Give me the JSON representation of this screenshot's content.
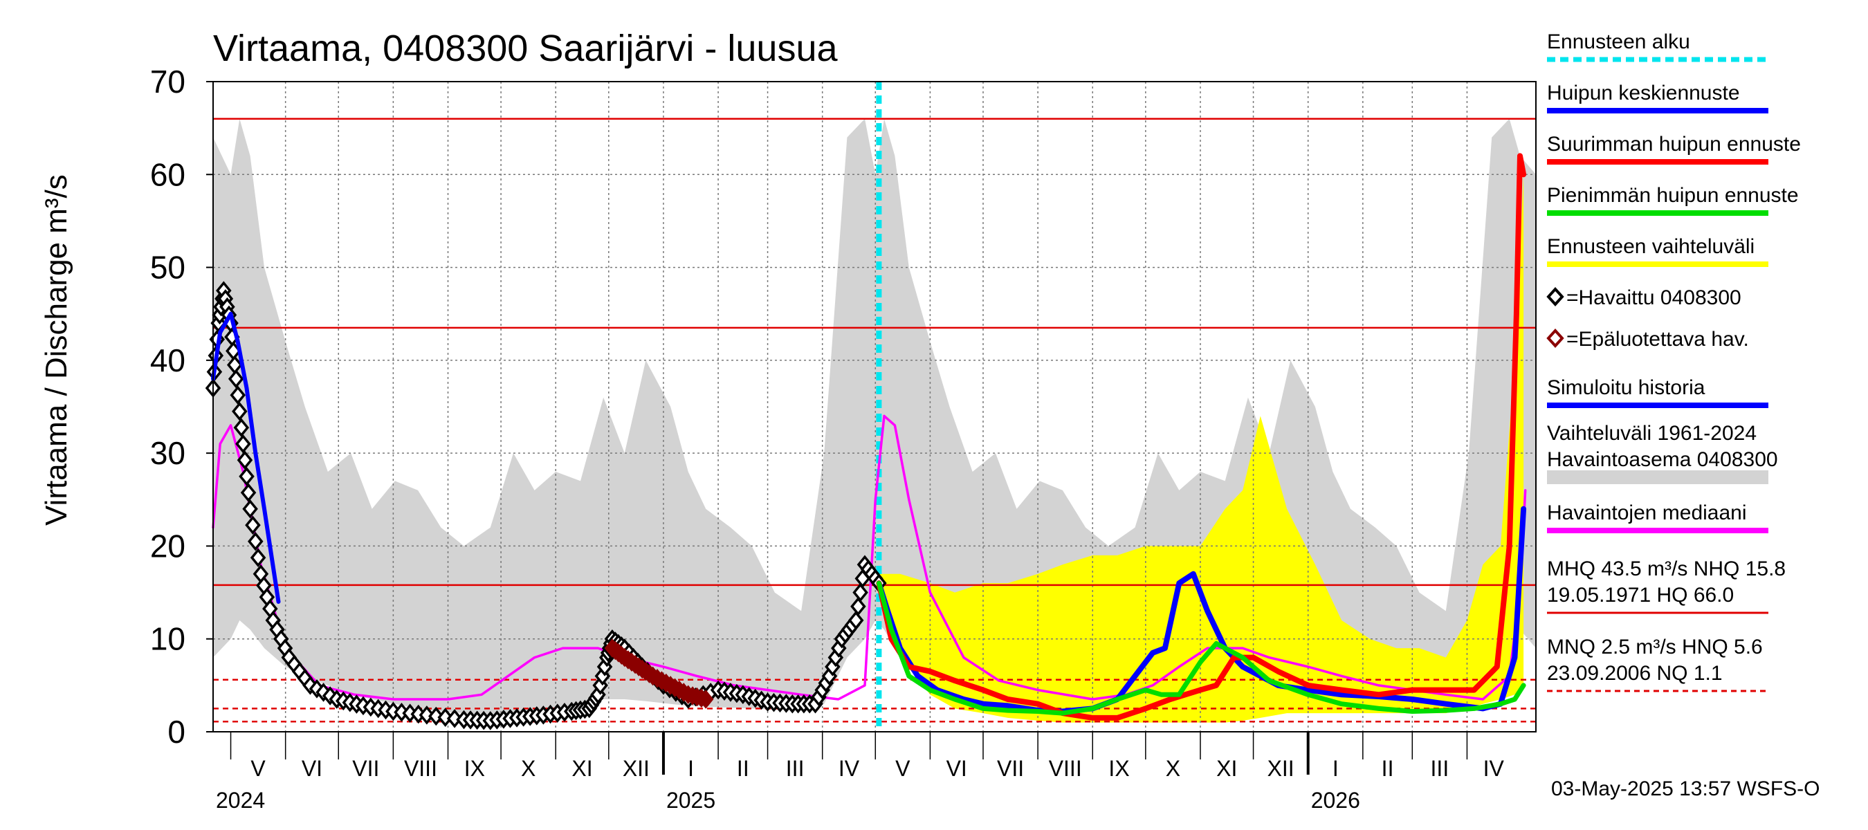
{
  "chart_data": {
    "type": "line",
    "title": "Virtaama, 0408300 Saarijärvi - luusua",
    "ylabel": "Virtaama / Discharge   m³/s",
    "ylim": [
      0,
      70
    ],
    "yticks": [
      0,
      10,
      20,
      30,
      40,
      50,
      60,
      70
    ],
    "xrange": [
      "2024-04-21",
      "2026-05-10"
    ],
    "months": [
      {
        "label": "V",
        "start": "2024-05-01",
        "end": "2024-06-01"
      },
      {
        "label": "VI",
        "start": "2024-06-01",
        "end": "2024-07-01"
      },
      {
        "label": "VII",
        "start": "2024-07-01",
        "end": "2024-08-01"
      },
      {
        "label": "VIII",
        "start": "2024-08-01",
        "end": "2024-09-01"
      },
      {
        "label": "IX",
        "start": "2024-09-01",
        "end": "2024-10-01"
      },
      {
        "label": "X",
        "start": "2024-10-01",
        "end": "2024-11-01"
      },
      {
        "label": "XI",
        "start": "2024-11-01",
        "end": "2024-12-01"
      },
      {
        "label": "XII",
        "start": "2024-12-01",
        "end": "2025-01-01"
      },
      {
        "label": "I",
        "start": "2025-01-01",
        "end": "2025-02-01"
      },
      {
        "label": "II",
        "start": "2025-02-01",
        "end": "2025-03-01"
      },
      {
        "label": "III",
        "start": "2025-03-01",
        "end": "2025-04-01"
      },
      {
        "label": "IV",
        "start": "2025-04-01",
        "end": "2025-05-01"
      },
      {
        "label": "V",
        "start": "2025-05-01",
        "end": "2025-06-01"
      },
      {
        "label": "VI",
        "start": "2025-06-01",
        "end": "2025-07-01"
      },
      {
        "label": "VII",
        "start": "2025-07-01",
        "end": "2025-08-01"
      },
      {
        "label": "VIII",
        "start": "2025-08-01",
        "end": "2025-09-01"
      },
      {
        "label": "IX",
        "start": "2025-09-01",
        "end": "2025-10-01"
      },
      {
        "label": "X",
        "start": "2025-10-01",
        "end": "2025-11-01"
      },
      {
        "label": "XI",
        "start": "2025-11-01",
        "end": "2025-12-01"
      },
      {
        "label": "XII",
        "start": "2025-12-01",
        "end": "2026-01-01"
      },
      {
        "label": "I",
        "start": "2026-01-01",
        "end": "2026-02-01"
      },
      {
        "label": "II",
        "start": "2026-02-01",
        "end": "2026-03-01"
      },
      {
        "label": "III",
        "start": "2026-03-01",
        "end": "2026-04-01"
      },
      {
        "label": "IV",
        "start": "2026-04-01",
        "end": "2026-05-01"
      }
    ],
    "years": [
      {
        "label": "2024",
        "date": "2024-04-21"
      },
      {
        "label": "2025",
        "date": "2025-01-01"
      },
      {
        "label": "2026",
        "date": "2026-01-01"
      }
    ],
    "reference_lines": [
      {
        "name": "HQ",
        "value": 66.0,
        "color": "#e00000",
        "style": "solid"
      },
      {
        "name": "MHQ",
        "value": 43.5,
        "color": "#e00000",
        "style": "solid"
      },
      {
        "name": "NHQ",
        "value": 15.8,
        "color": "#e00000",
        "style": "solid"
      },
      {
        "name": "HNQ",
        "value": 5.6,
        "color": "#e00000",
        "style": "dashed"
      },
      {
        "name": "MNQ",
        "value": 2.5,
        "color": "#e00000",
        "style": "dashed"
      },
      {
        "name": "NQ",
        "value": 1.1,
        "color": "#e00000",
        "style": "dashed"
      }
    ],
    "forecast_start": "2025-05-03",
    "historical_range": {
      "color": "#d3d3d3",
      "dates": [
        "2024-04-21",
        "2024-05-01",
        "2024-05-06",
        "2024-05-12",
        "2024-05-20",
        "2024-06-01",
        "2024-06-12",
        "2024-06-25",
        "2024-07-08",
        "2024-07-20",
        "2024-08-02",
        "2024-08-15",
        "2024-08-28",
        "2024-09-10",
        "2024-09-25",
        "2024-10-08",
        "2024-10-20",
        "2024-11-01",
        "2024-11-15",
        "2024-11-28",
        "2024-12-10",
        "2024-12-22",
        "2025-01-05",
        "2025-01-15",
        "2025-01-25",
        "2025-02-08",
        "2025-02-20",
        "2025-03-05",
        "2025-03-20",
        "2025-04-02",
        "2025-04-15",
        "2025-04-25",
        "2025-05-01",
        "2025-05-06",
        "2025-05-12",
        "2025-05-20",
        "2025-06-01",
        "2025-06-12",
        "2025-06-25",
        "2025-07-08",
        "2025-07-20",
        "2025-08-02",
        "2025-08-15",
        "2025-08-28",
        "2025-09-10",
        "2025-09-25",
        "2025-10-08",
        "2025-10-20",
        "2025-11-01",
        "2025-11-15",
        "2025-11-28",
        "2025-12-10",
        "2025-12-22",
        "2026-01-05",
        "2026-01-15",
        "2026-01-25",
        "2026-02-08",
        "2026-02-20",
        "2026-03-05",
        "2026-03-20",
        "2026-04-02",
        "2026-04-15",
        "2026-04-25",
        "2026-05-01",
        "2026-05-10"
      ],
      "upper": [
        64,
        60,
        66,
        62,
        50,
        42,
        35,
        28,
        30,
        24,
        27,
        26,
        22,
        20,
        22,
        30,
        26,
        28,
        27,
        36,
        30,
        40,
        35,
        28,
        24,
        22,
        20,
        15,
        13,
        30,
        64,
        66,
        60,
        66,
        62,
        50,
        42,
        35,
        28,
        30,
        24,
        27,
        26,
        22,
        20,
        22,
        30,
        26,
        28,
        27,
        36,
        30,
        40,
        35,
        28,
        24,
        22,
        20,
        15,
        13,
        30,
        64,
        66,
        62,
        60
      ],
      "lower": [
        8,
        10,
        12,
        11,
        9,
        7,
        6,
        5,
        4,
        3.5,
        3,
        2.5,
        2.2,
        2,
        1.8,
        2,
        2.2,
        2.5,
        3,
        3.5,
        3.5,
        3.3,
        3,
        2.8,
        2.7,
        2.6,
        2.5,
        2.4,
        2.4,
        3,
        8,
        10,
        12,
        11,
        9,
        7,
        6,
        5,
        4,
        3.5,
        3,
        2.5,
        2.2,
        2,
        1.8,
        2,
        2.2,
        2.5,
        3,
        3.5,
        3.5,
        3.3,
        3,
        2.8,
        2.7,
        2.6,
        2.5,
        2.4,
        2.4,
        3,
        8,
        10,
        12,
        11,
        9
      ]
    },
    "forecast_range": {
      "color": "#ffff00",
      "dates": [
        "2025-05-03",
        "2025-05-15",
        "2025-06-01",
        "2025-06-15",
        "2025-07-01",
        "2025-07-15",
        "2025-08-01",
        "2025-08-15",
        "2025-09-01",
        "2025-09-15",
        "2025-10-01",
        "2025-10-15",
        "2025-11-01",
        "2025-11-15",
        "2025-11-25",
        "2025-12-05",
        "2025-12-20",
        "2026-01-05",
        "2026-01-20",
        "2026-02-05",
        "2026-02-20",
        "2026-03-05",
        "2026-03-20",
        "2026-04-01",
        "2026-04-10",
        "2026-04-20",
        "2026-04-28",
        "2026-05-03"
      ],
      "upper": [
        17,
        17,
        16,
        15,
        16,
        16,
        17,
        18,
        19,
        19,
        20,
        20,
        20,
        24,
        26,
        34,
        24,
        18,
        12,
        10,
        9,
        9,
        8,
        12,
        18,
        20,
        40,
        60
      ],
      "lower": [
        16,
        8,
        4,
        2.5,
        2,
        1.5,
        1.2,
        1,
        1,
        1,
        1,
        1,
        1,
        1,
        1.2,
        1.5,
        2,
        2,
        2,
        2,
        2,
        2,
        2,
        2.5,
        3,
        3.5,
        4,
        5
      ]
    },
    "series": [
      {
        "name": "Havaintojen mediaani",
        "color": "#ff00ff",
        "x": [
          "2024-04-21",
          "2024-04-25",
          "2024-05-01",
          "2024-05-08",
          "2024-05-18",
          "2024-06-01",
          "2024-06-20",
          "2024-07-10",
          "2024-08-01",
          "2024-09-01",
          "2024-09-20",
          "2024-10-05",
          "2024-10-20",
          "2024-11-05",
          "2024-11-25",
          "2024-12-10",
          "2025-01-01",
          "2025-01-20",
          "2025-02-10",
          "2025-03-01",
          "2025-03-20",
          "2025-04-10",
          "2025-04-25",
          "2025-05-01",
          "2025-05-06",
          "2025-05-12",
          "2025-05-20",
          "2025-06-01",
          "2025-06-20",
          "2025-07-10",
          "2025-08-01",
          "2025-09-01",
          "2025-09-20",
          "2025-10-05",
          "2025-10-20",
          "2025-11-05",
          "2025-11-25",
          "2025-12-10",
          "2026-01-01",
          "2026-01-20",
          "2026-02-10",
          "2026-03-01",
          "2026-03-20",
          "2026-04-10",
          "2026-04-25",
          "2026-05-01",
          "2026-05-04"
        ],
        "y": [
          22,
          31,
          33,
          28,
          18,
          9,
          5,
          4,
          3.5,
          3.5,
          4,
          6,
          8,
          9,
          9,
          8,
          7,
          6,
          5,
          4.5,
          4,
          3.5,
          5,
          25,
          34,
          33,
          25,
          15,
          8,
          5.5,
          4.5,
          3.5,
          4,
          5,
          7,
          9,
          9,
          8,
          7,
          6,
          5,
          4.5,
          4,
          3.5,
          6,
          15,
          26
        ]
      },
      {
        "name": "Havaittu 0408300",
        "color": "#000000",
        "x": [
          "2024-04-21",
          "2024-04-24",
          "2024-04-27",
          "2024-05-01",
          "2024-05-04",
          "2024-05-08",
          "2024-05-12",
          "2024-05-18",
          "2024-05-25",
          "2024-06-03",
          "2024-06-15",
          "2024-06-30",
          "2024-07-15",
          "2024-08-01",
          "2024-08-20",
          "2024-09-10",
          "2024-09-25",
          "2024-10-10",
          "2024-10-25",
          "2024-11-10",
          "2024-11-20",
          "2024-11-25",
          "2024-11-30",
          "2024-12-03",
          "2024-12-10",
          "2024-12-20",
          "2025-01-01",
          "2025-01-15",
          "2025-02-01",
          "2025-02-15",
          "2025-03-01",
          "2025-03-15",
          "2025-03-28",
          "2025-04-05",
          "2025-04-12",
          "2025-04-20",
          "2025-04-25",
          "2025-05-03"
        ],
        "y": [
          37,
          44,
          47.5,
          44,
          38,
          31,
          24,
          17,
          12,
          8,
          5,
          3.5,
          2.8,
          2.2,
          1.8,
          1.3,
          1.2,
          1.5,
          1.8,
          2.2,
          2.5,
          4,
          8,
          10,
          9,
          7,
          5,
          3.5,
          4.5,
          4,
          3.2,
          3,
          3,
          6,
          10,
          12,
          18,
          16
        ]
      },
      {
        "name": "Epäluotettava hav.",
        "color": "#8b0000",
        "x": [
          "2024-12-03",
          "2024-12-10",
          "2024-12-18",
          "2024-12-26",
          "2025-01-05",
          "2025-01-15",
          "2025-01-25"
        ],
        "y": [
          9,
          8,
          7,
          6,
          5,
          4,
          3.5
        ]
      },
      {
        "name": "Simuloitu historia",
        "color": "#0000ff",
        "x": [
          "2024-04-21",
          "2024-04-25",
          "2024-05-01",
          "2024-05-05",
          "2024-05-10",
          "2024-05-15",
          "2024-05-20",
          "2024-05-28"
        ],
        "y": [
          38,
          43,
          45,
          42,
          37,
          30,
          24,
          14
        ]
      },
      {
        "name": "Huipun keskiennuste",
        "color": "#0000ff",
        "x": [
          "2025-05-03",
          "2025-05-08",
          "2025-05-15",
          "2025-05-25",
          "2025-06-05",
          "2025-06-20",
          "2025-07-01",
          "2025-07-15",
          "2025-08-01",
          "2025-08-15",
          "2025-09-01",
          "2025-09-15",
          "2025-09-25",
          "2025-10-05",
          "2025-10-12",
          "2025-10-20",
          "2025-10-28",
          "2025-11-05",
          "2025-11-15",
          "2025-11-25",
          "2025-12-05",
          "2025-12-15",
          "2026-01-01",
          "2026-01-20",
          "2026-02-10",
          "2026-03-01",
          "2026-03-20",
          "2026-04-10",
          "2026-04-20",
          "2026-04-28",
          "2026-05-03"
        ],
        "y": [
          16,
          13,
          9,
          6,
          4.5,
          3.5,
          3,
          2.8,
          2.3,
          2.2,
          2.5,
          3.5,
          6,
          8.5,
          9,
          16,
          17,
          13,
          9,
          7,
          6,
          5,
          4.5,
          4,
          3.8,
          3.5,
          3,
          2.5,
          3,
          8,
          24
        ]
      },
      {
        "name": "Suurimman huipun ennuste",
        "color": "#ff0000",
        "x": [
          "2025-05-03",
          "2025-05-10",
          "2025-05-20",
          "2025-06-01",
          "2025-06-15",
          "2025-07-01",
          "2025-07-15",
          "2025-08-01",
          "2025-08-15",
          "2025-09-01",
          "2025-09-15",
          "2025-10-01",
          "2025-10-15",
          "2025-11-01",
          "2025-11-10",
          "2025-11-20",
          "2025-12-01",
          "2025-12-15",
          "2026-01-01",
          "2026-01-20",
          "2026-02-10",
          "2026-03-01",
          "2026-03-20",
          "2026-04-05",
          "2026-04-18",
          "2026-04-25",
          "2026-04-29",
          "2026-05-01",
          "2026-05-03"
        ],
        "y": [
          16,
          10,
          7,
          6.5,
          5.5,
          4.5,
          3.5,
          3,
          2,
          1.5,
          1.5,
          2.5,
          3.5,
          4.5,
          5,
          8,
          8,
          6.5,
          5,
          4.5,
          4,
          4.5,
          4.5,
          4.5,
          7,
          20,
          45,
          62,
          60
        ]
      },
      {
        "name": "Pienimmän huipun ennuste",
        "color": "#00dd00",
        "x": [
          "2025-05-03",
          "2025-05-10",
          "2025-05-20",
          "2025-06-01",
          "2025-06-15",
          "2025-07-01",
          "2025-07-15",
          "2025-08-01",
          "2025-08-15",
          "2025-09-01",
          "2025-09-15",
          "2025-10-01",
          "2025-10-10",
          "2025-10-20",
          "2025-11-01",
          "2025-11-10",
          "2025-11-25",
          "2025-12-10",
          "2026-01-01",
          "2026-01-20",
          "2026-02-10",
          "2026-03-01",
          "2026-03-20",
          "2026-04-05",
          "2026-04-20",
          "2026-04-28",
          "2026-05-03"
        ],
        "y": [
          16,
          11,
          6,
          4.5,
          3.5,
          2.5,
          2.3,
          2.2,
          2,
          2.5,
          3.5,
          4.5,
          4,
          4,
          7.5,
          9.5,
          8,
          5.5,
          4,
          3,
          2.5,
          2.2,
          2.3,
          2.5,
          3,
          3.5,
          5
        ]
      }
    ],
    "legend": [
      {
        "label": "Ennusteen alku",
        "color": "#00e5ee",
        "kind": "dotted"
      },
      {
        "label": "Huipun keskiennuste",
        "color": "#0000ff",
        "kind": "line"
      },
      {
        "label": "Suurimman huipun ennuste",
        "color": "#ff0000",
        "kind": "line"
      },
      {
        "label": "Pienimmän huipun ennuste",
        "color": "#00dd00",
        "kind": "line"
      },
      {
        "label": "Ennusteen vaihteluväli",
        "color": "#ffff00",
        "kind": "line"
      },
      {
        "label": "=Havaittu 0408300",
        "color": "#000000",
        "kind": "diamond"
      },
      {
        "label": "=Epäluotettava hav.",
        "color": "#8b0000",
        "kind": "diamond"
      },
      {
        "label": "Simuloitu historia",
        "color": "#0000ff",
        "kind": "line"
      },
      {
        "label": "Vaihteluväli 1961-2024",
        "label2": " Havaintoasema 0408300",
        "color": "#d3d3d3",
        "kind": "thick"
      },
      {
        "label": "Havaintojen mediaani",
        "color": "#ff00ff",
        "kind": "line"
      },
      {
        "label": "MHQ 43.5 m³/s NHQ 15.8",
        "label2": "19.05.1971 HQ 66.0",
        "color": "#e00000",
        "kind": "thin"
      },
      {
        "label": "MNQ  2.5 m³/s HNQ  5.6",
        "label2": "23.09.2006 NQ  1.1",
        "color": "#e00000",
        "kind": "dashed"
      }
    ],
    "footer": "03-May-2025 13:57 WSFS-O",
    "grid": true
  }
}
